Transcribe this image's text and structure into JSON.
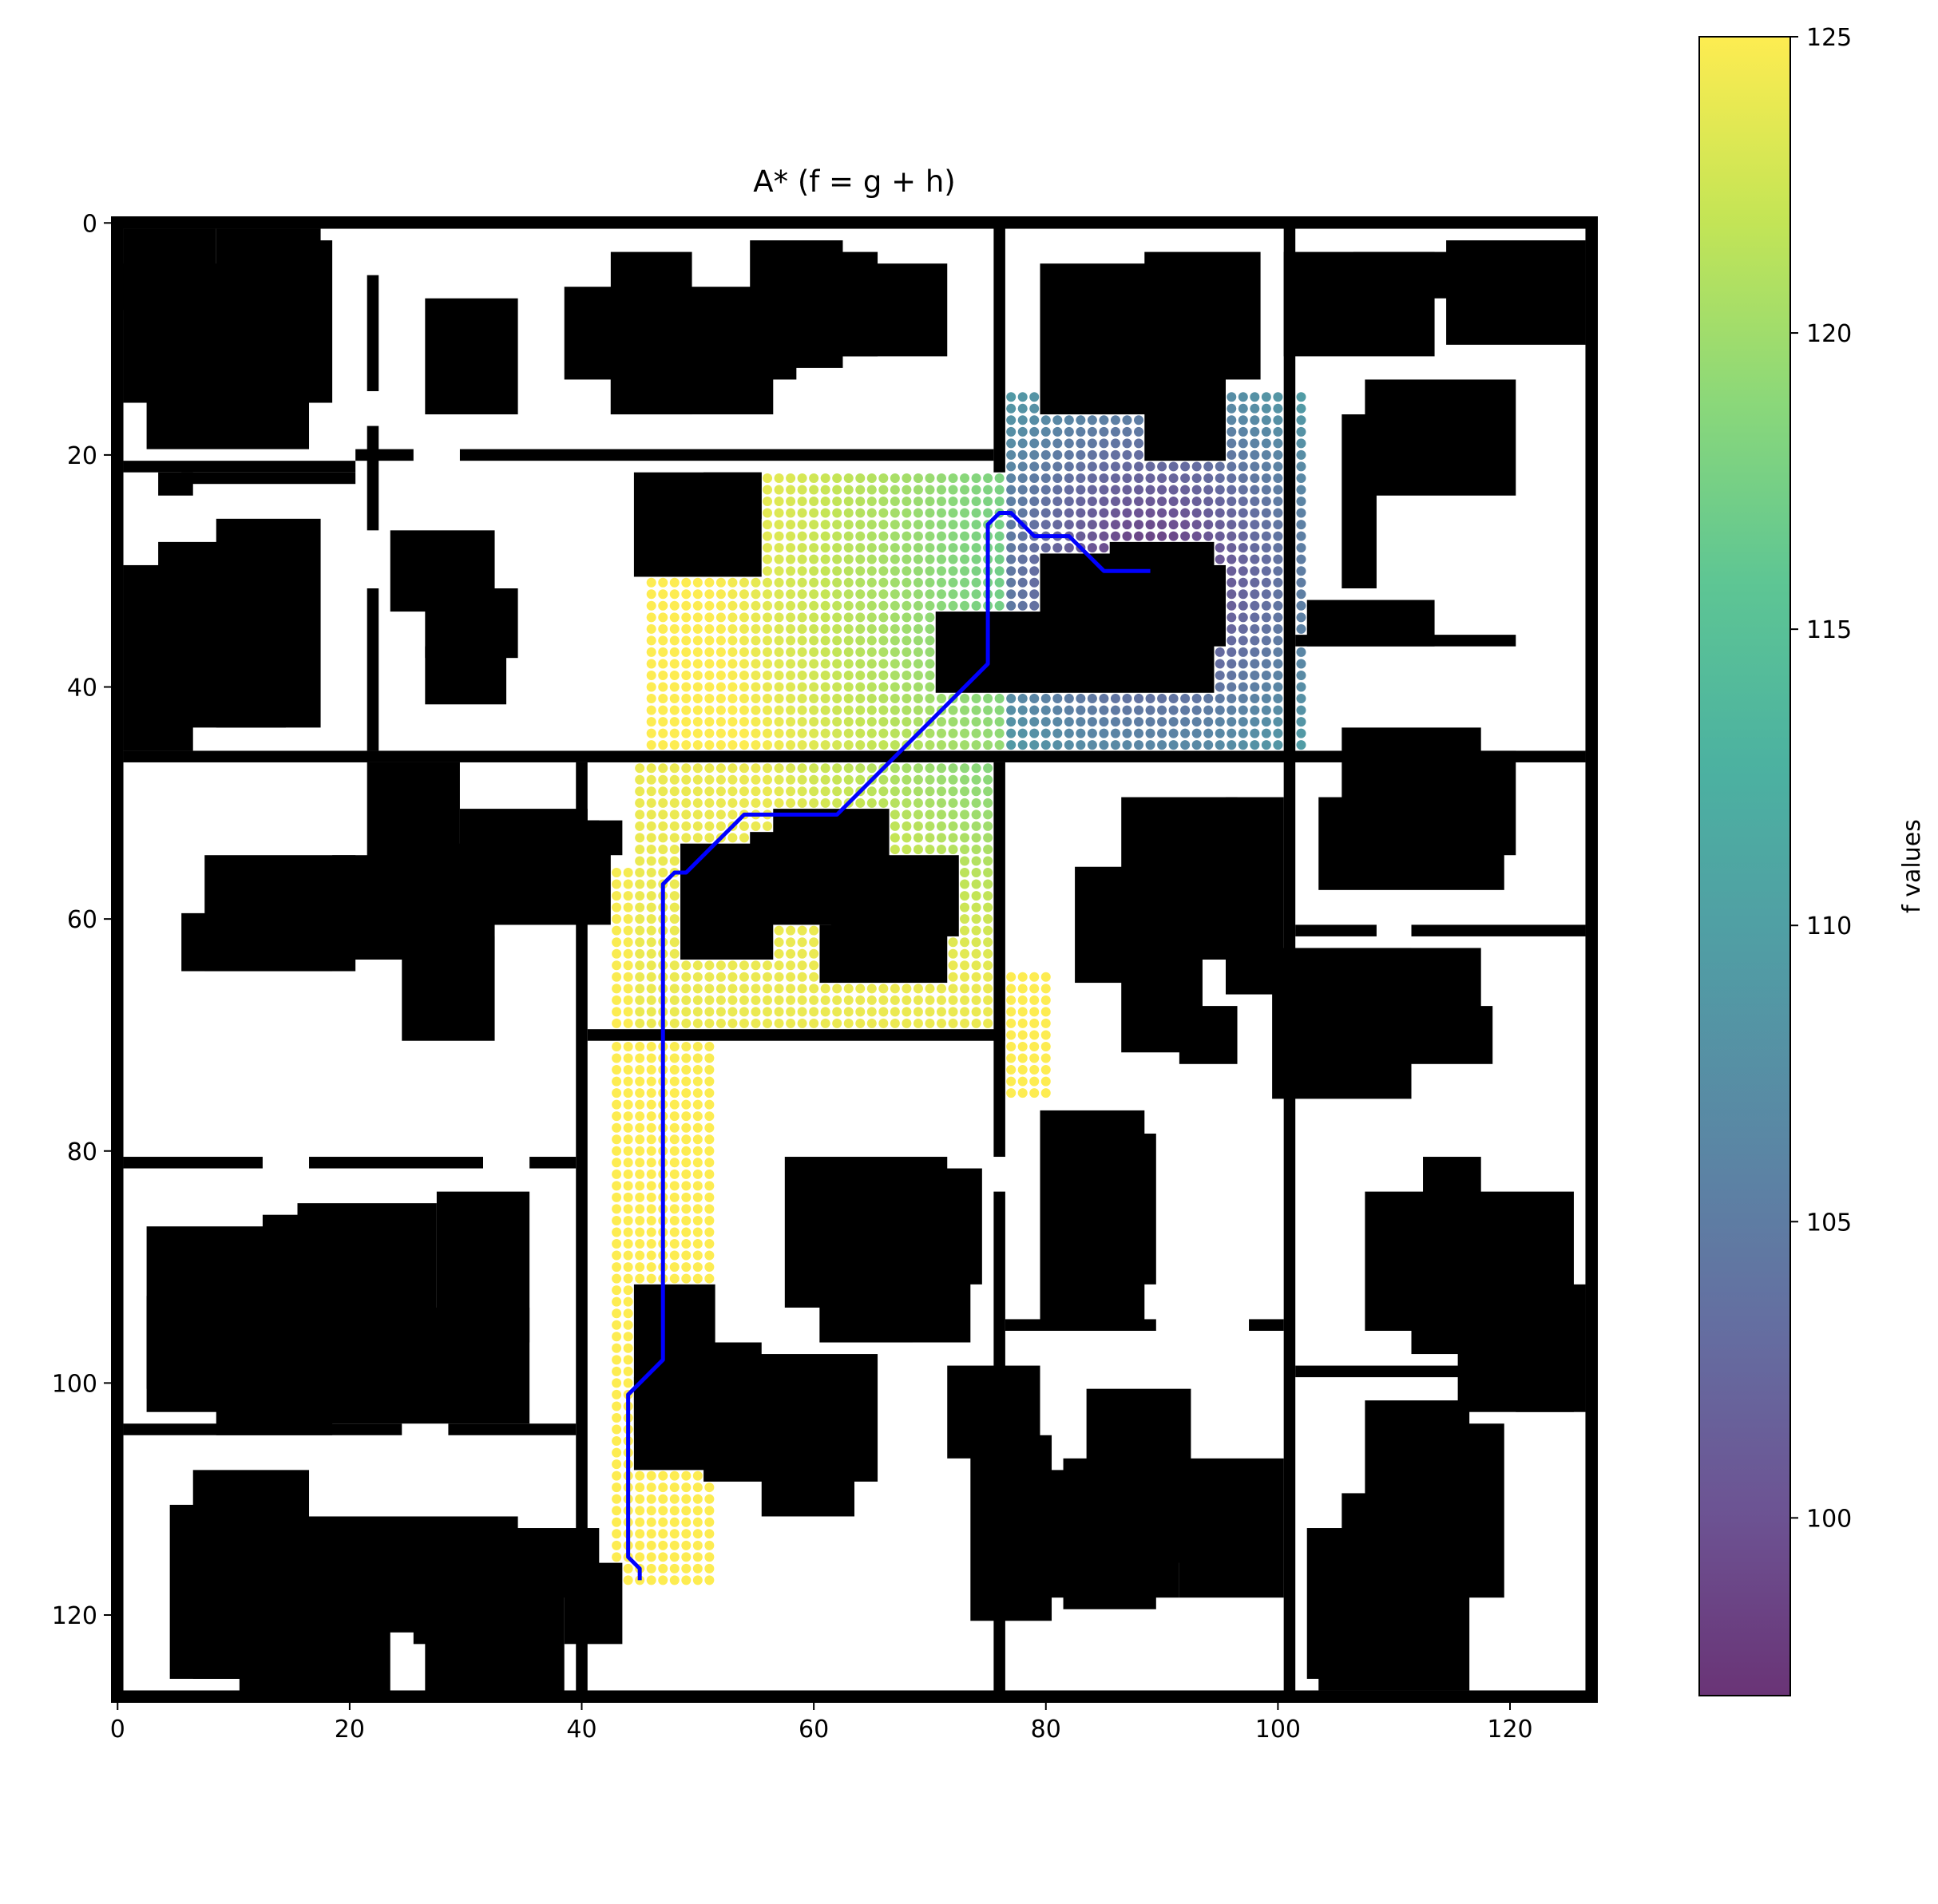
{
  "chart_data": {
    "type": "heatmap",
    "title": "A* (f = g + h)",
    "description_kind": "occupancy grid with A* explored cells colored by f value and found path",
    "grid": {
      "width": 128,
      "height": 128
    },
    "x_axis": {
      "ticks": [
        0,
        20,
        40,
        60,
        80,
        100,
        120
      ],
      "lim": [
        -0.5,
        127.5
      ]
    },
    "y_axis": {
      "ticks": [
        0,
        20,
        40,
        60,
        80,
        100,
        120
      ],
      "lim": [
        127.5,
        -0.5
      ],
      "inverted": true
    },
    "colorbar": {
      "label": "f values",
      "colormap": "viridis",
      "range": [
        97,
        125
      ],
      "ticks": [
        100,
        105,
        110,
        115,
        120,
        125
      ]
    },
    "colors": {
      "obstacle": "#000000",
      "free": "#ffffff",
      "path": "#0000ff"
    },
    "obstacles": [
      [
        0,
        0,
        128,
        1
      ],
      [
        0,
        127,
        128,
        1
      ],
      [
        0,
        0,
        1,
        128
      ],
      [
        127,
        0,
        1,
        128
      ],
      [
        76,
        0,
        1,
        22
      ],
      [
        101,
        0,
        1,
        48
      ],
      [
        1,
        46,
        126,
        1
      ],
      [
        40,
        47,
        1,
        33
      ],
      [
        41,
        70,
        36,
        1
      ],
      [
        76,
        47,
        1,
        34
      ],
      [
        101,
        48,
        1,
        80
      ],
      [
        40,
        80,
        1,
        48
      ],
      [
        76,
        84,
        1,
        44
      ],
      [
        22,
        5,
        1,
        10
      ],
      [
        22,
        18,
        1,
        9
      ],
      [
        22,
        32,
        1,
        14
      ],
      [
        1,
        21,
        20,
        1
      ],
      [
        6,
        22,
        15,
        1
      ],
      [
        21,
        20,
        5,
        1
      ],
      [
        30,
        20,
        46,
        1
      ],
      [
        1,
        81,
        12,
        1
      ],
      [
        17,
        81,
        15,
        1
      ],
      [
        36,
        81,
        4,
        1
      ],
      [
        1,
        104,
        24,
        1
      ],
      [
        29,
        104,
        11,
        1
      ],
      [
        77,
        95,
        13,
        1
      ],
      [
        98,
        95,
        3,
        1
      ],
      [
        102,
        36,
        19,
        1
      ],
      [
        102,
        61,
        7,
        1
      ],
      [
        112,
        61,
        15,
        1
      ],
      [
        102,
        99,
        18,
        1
      ],
      [
        1,
        1,
        8,
        7
      ],
      [
        9,
        1,
        9,
        10
      ],
      [
        1,
        4,
        16,
        12
      ],
      [
        3,
        15,
        14,
        5
      ],
      [
        4,
        22,
        3,
        2
      ],
      [
        13,
        2,
        6,
        14
      ],
      [
        27,
        7,
        8,
        10
      ],
      [
        43,
        3,
        7,
        14
      ],
      [
        39,
        6,
        20,
        8
      ],
      [
        43,
        11,
        14,
        6
      ],
      [
        59,
        3,
        7,
        9
      ],
      [
        63,
        4,
        9,
        8
      ],
      [
        55,
        2,
        8,
        11
      ],
      [
        80,
        4,
        14,
        13
      ],
      [
        89,
        3,
        10,
        11
      ],
      [
        84,
        12,
        6,
        2
      ],
      [
        89,
        13,
        7,
        8
      ],
      [
        1,
        30,
        6,
        16
      ],
      [
        4,
        28,
        11,
        16
      ],
      [
        9,
        26,
        9,
        18
      ],
      [
        24,
        27,
        9,
        7
      ],
      [
        27,
        32,
        8,
        6
      ],
      [
        27,
        37,
        7,
        5
      ],
      [
        45,
        22,
        11,
        9
      ],
      [
        51,
        22,
        5,
        4
      ],
      [
        71,
        34,
        10,
        7
      ],
      [
        80,
        29,
        15,
        12
      ],
      [
        86,
        28,
        9,
        3
      ],
      [
        91,
        30,
        5,
        7
      ],
      [
        107,
        3,
        12,
        4
      ],
      [
        101,
        3,
        13,
        9
      ],
      [
        115,
        2,
        12,
        9
      ],
      [
        108,
        14,
        13,
        10
      ],
      [
        106,
        17,
        3,
        15
      ],
      [
        103,
        33,
        11,
        4
      ],
      [
        106,
        44,
        12,
        13
      ],
      [
        104,
        50,
        16,
        8
      ],
      [
        107,
        46,
        14,
        9
      ],
      [
        19,
        55,
        14,
        9
      ],
      [
        24,
        54,
        19,
        7
      ],
      [
        32,
        52,
        10,
        8
      ],
      [
        40,
        52,
        4,
        3
      ],
      [
        25,
        62,
        8,
        9
      ],
      [
        30,
        51,
        11,
        10
      ],
      [
        22,
        47,
        8,
        14
      ],
      [
        8,
        55,
        13,
        10
      ],
      [
        6,
        60,
        13,
        5
      ],
      [
        49,
        54,
        8,
        10
      ],
      [
        55,
        53,
        8,
        8
      ],
      [
        62,
        55,
        11,
        7
      ],
      [
        61,
        61,
        11,
        5
      ],
      [
        57,
        51,
        10,
        7
      ],
      [
        83,
        56,
        10,
        10
      ],
      [
        87,
        50,
        10,
        14
      ],
      [
        96,
        50,
        5,
        17
      ],
      [
        87,
        60,
        7,
        12
      ],
      [
        92,
        68,
        5,
        5
      ],
      [
        80,
        77,
        9,
        19
      ],
      [
        83,
        79,
        7,
        13
      ],
      [
        100,
        63,
        12,
        13
      ],
      [
        105,
        64,
        8,
        8
      ],
      [
        109,
        68,
        10,
        5
      ],
      [
        105,
        63,
        13,
        7
      ],
      [
        58,
        81,
        14,
        13
      ],
      [
        64,
        82,
        11,
        10
      ],
      [
        61,
        84,
        13,
        13
      ],
      [
        61,
        91,
        8,
        6
      ],
      [
        3,
        87,
        20,
        14
      ],
      [
        13,
        86,
        9,
        11
      ],
      [
        16,
        85,
        12,
        16
      ],
      [
        28,
        84,
        8,
        13
      ],
      [
        11,
        94,
        25,
        10
      ],
      [
        9,
        98,
        10,
        7
      ],
      [
        3,
        93,
        9,
        10
      ],
      [
        45,
        92,
        7,
        13
      ],
      [
        51,
        97,
        5,
        4
      ],
      [
        45,
        100,
        12,
        8
      ],
      [
        51,
        98,
        15,
        11
      ],
      [
        56,
        101,
        8,
        11
      ],
      [
        72,
        99,
        8,
        8
      ],
      [
        74,
        105,
        7,
        16
      ],
      [
        84,
        101,
        9,
        15
      ],
      [
        82,
        107,
        8,
        13
      ],
      [
        80,
        108,
        12,
        11
      ],
      [
        92,
        107,
        9,
        12
      ],
      [
        103,
        113,
        4,
        13
      ],
      [
        106,
        110,
        13,
        7
      ],
      [
        104,
        115,
        13,
        12
      ],
      [
        108,
        102,
        9,
        9
      ],
      [
        111,
        104,
        9,
        15
      ],
      [
        121,
        94,
        5,
        9
      ],
      [
        116,
        92,
        11,
        11
      ],
      [
        112,
        88,
        7,
        10
      ],
      [
        108,
        84,
        18,
        12
      ],
      [
        113,
        81,
        5,
        10
      ],
      [
        7,
        108,
        10,
        18
      ],
      [
        5,
        111,
        11,
        15
      ],
      [
        11,
        116,
        13,
        12
      ],
      [
        16,
        112,
        18,
        10
      ],
      [
        26,
        112,
        9,
        11
      ],
      [
        27,
        118,
        12,
        11
      ],
      [
        34,
        113,
        8,
        6
      ],
      [
        39,
        116,
        5,
        7
      ]
    ],
    "explored_regions": [
      {
        "x": [
          46,
          76
        ],
        "y": [
          22,
          45
        ],
        "f": [
          113,
          125
        ]
      },
      {
        "x": [
          76,
          102
        ],
        "y": [
          15,
          45
        ],
        "f": [
          97,
          122
        ]
      },
      {
        "x": [
          45,
          76
        ],
        "y": [
          47,
          69
        ],
        "f": [
          111,
          124
        ]
      },
      {
        "x": [
          43,
          51
        ],
        "y": [
          56,
          117
        ],
        "f": [
          122,
          125
        ]
      },
      {
        "x": [
          76,
          80
        ],
        "y": [
          65,
          75
        ],
        "f": [
          122,
          125
        ]
      }
    ],
    "path": [
      [
        45,
        117
      ],
      [
        45,
        116
      ],
      [
        44,
        115
      ],
      [
        44,
        101
      ],
      [
        47,
        98
      ],
      [
        47,
        57
      ],
      [
        48,
        56
      ],
      [
        49,
        56
      ],
      [
        54,
        51
      ],
      [
        62,
        51
      ],
      [
        75,
        38
      ],
      [
        75,
        26
      ],
      [
        76,
        25
      ],
      [
        77,
        25
      ],
      [
        79,
        27
      ],
      [
        82,
        27
      ],
      [
        85,
        30
      ],
      [
        89,
        30
      ]
    ]
  }
}
